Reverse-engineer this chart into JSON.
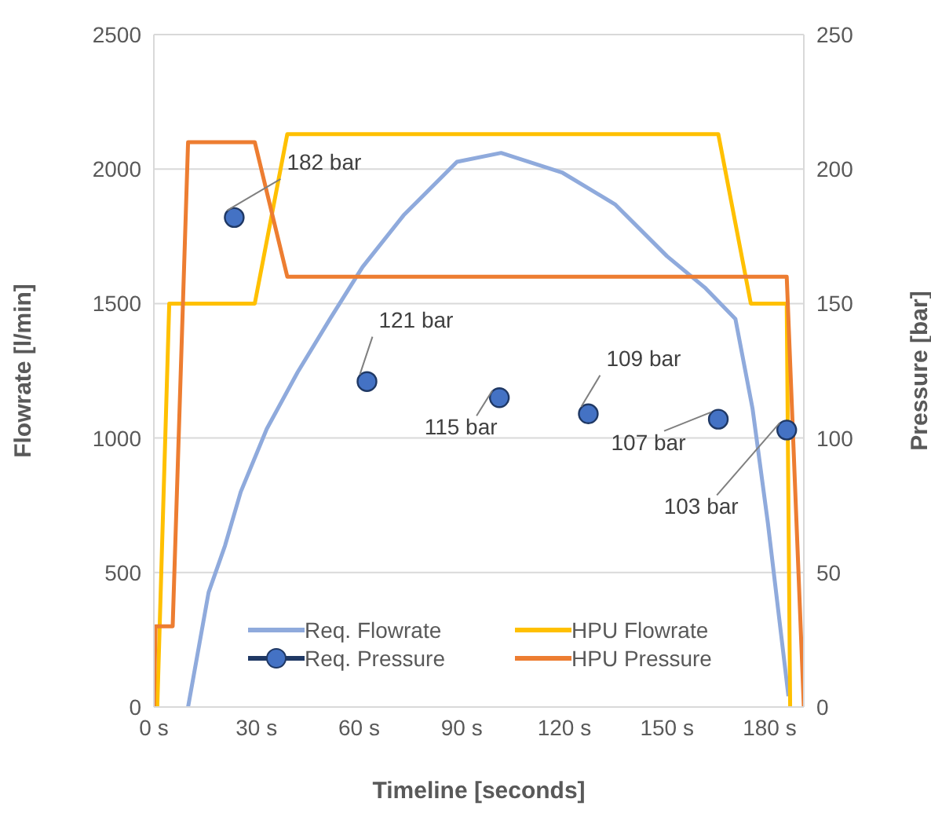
{
  "chart_data": {
    "type": "line",
    "xlabel": "Timeline [seconds]",
    "ylabel": "Flowrate [l/min]",
    "y2label": "Pressure [bar]",
    "xlim": [
      0,
      190
    ],
    "xticks": [
      {
        "value": 0,
        "label": "0 s"
      },
      {
        "value": 30,
        "label": "30 s"
      },
      {
        "value": 60,
        "label": "60 s"
      },
      {
        "value": 90,
        "label": "90 s"
      },
      {
        "value": 120,
        "label": "120 s"
      },
      {
        "value": 150,
        "label": "150 s"
      },
      {
        "value": 180,
        "label": "180 s"
      }
    ],
    "ylim": [
      0,
      2500
    ],
    "yticks": [
      0,
      500,
      1000,
      1500,
      2000,
      2500
    ],
    "y2lim": [
      0,
      250
    ],
    "y2ticks": [
      0,
      50,
      100,
      150,
      200,
      250
    ],
    "grid": "y",
    "legend": "bottom",
    "series": [
      {
        "name": "Req. Flowrate",
        "color": "#8faadc",
        "x": [
          10,
          16,
          20.8,
          25.4,
          33,
          42,
          51.5,
          61,
          73,
          88.6,
          101.5,
          119.5,
          134.8,
          150,
          161,
          170,
          175,
          179.5,
          185.5
        ],
        "values": [
          0,
          426,
          600,
          800,
          1034,
          1244,
          1443,
          1636,
          1828,
          2027,
          2060,
          1986,
          1869,
          1676,
          1560,
          1443,
          1110,
          683,
          40
        ]
      },
      {
        "name": "HPU Flowrate",
        "color": "#ffc000",
        "x": [
          1,
          4.5,
          29.5,
          39,
          165,
          174.5,
          185,
          186
        ],
        "values": [
          0,
          1500,
          1500,
          2130,
          2130,
          1500,
          1500,
          0
        ]
      },
      {
        "name": "Req. Pressure",
        "type": "scatter",
        "axis": "y2",
        "marker": "circle",
        "color": "#4472c4",
        "x": [
          23.5,
          62.3,
          101,
          127,
          165,
          185
        ],
        "values": [
          182,
          121,
          115,
          109,
          107,
          103
        ],
        "value_labels": [
          "182 bar",
          "121 bar",
          "115 bar",
          "109 bar",
          "107 bar",
          "103 bar"
        ]
      },
      {
        "name": "HPU Pressure",
        "axis": "y2",
        "color": "#ed7d31",
        "x": [
          0,
          0.5,
          5.5,
          10,
          29.5,
          39,
          185,
          190
        ],
        "values": [
          0,
          30,
          30,
          210,
          210,
          160,
          160,
          0
        ]
      }
    ]
  }
}
